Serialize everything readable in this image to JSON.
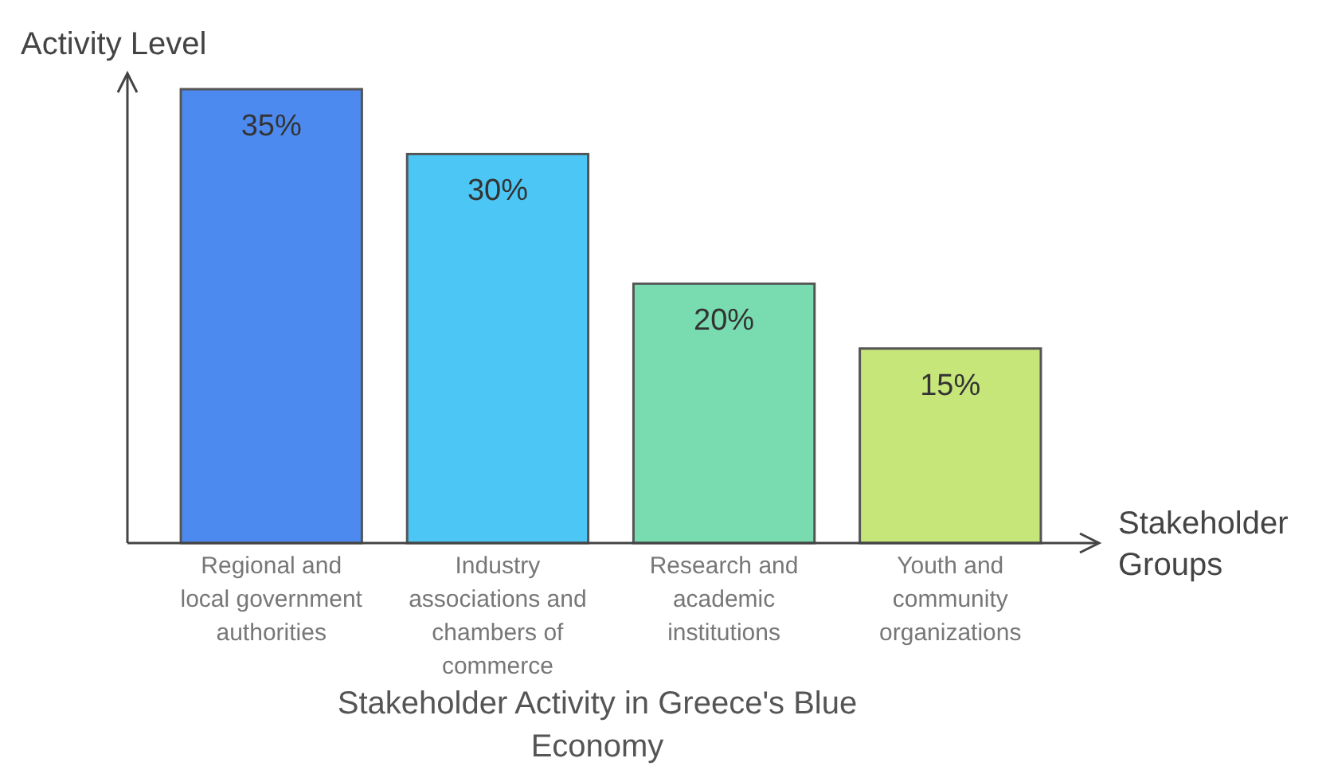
{
  "chart_data": {
    "type": "bar",
    "title": "Stakeholder Activity in Greece's Blue Economy",
    "xlabel": "Stakeholder Groups",
    "ylabel": "Activity Level",
    "categories": [
      "Regional and local government authorities",
      "Industry associations and chambers of commerce",
      "Research and academic institutions",
      "Youth and community organizations"
    ],
    "values": [
      35,
      30,
      20,
      15
    ],
    "colors": [
      "#4d8af0",
      "#4cc6f4",
      "#78dcb0",
      "#c6e67a"
    ],
    "value_labels": [
      "35%",
      "30%",
      "20%",
      "15%"
    ],
    "tick_labels": "x"
  }
}
